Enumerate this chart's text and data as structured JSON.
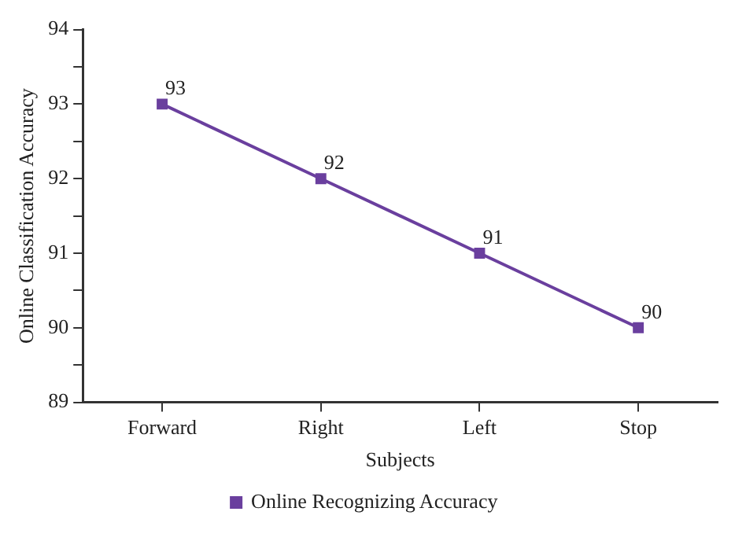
{
  "chart_data": {
    "type": "line",
    "xlabel": "Subjects",
    "ylabel": "Online Classification Accuracy",
    "categories": [
      "Forward",
      "Right",
      "Left",
      "Stop"
    ],
    "series": [
      {
        "name": "Online Recognizing Accuracy",
        "color": "#6a3f9e",
        "values": [
          93,
          92,
          91,
          90
        ]
      }
    ],
    "ylim": [
      89,
      94
    ],
    "yticks": [
      89,
      {
        "value": 89.5,
        "label": null
      },
      90,
      {
        "value": 90.5,
        "label": null
      },
      91,
      {
        "value": 91.5,
        "label": null
      },
      92,
      {
        "value": 92.5,
        "label": null
      },
      93,
      {
        "value": 93.5,
        "label": null
      },
      94
    ],
    "data_labels": true,
    "grid": false,
    "legend": "bottom",
    "marker": "square",
    "line_style": "solid"
  }
}
